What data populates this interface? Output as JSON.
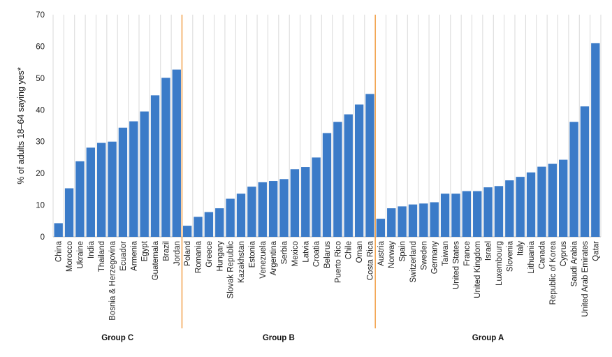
{
  "chart_data": {
    "type": "bar",
    "title": "",
    "ylabel": "% of adults 18–64 saying yes*",
    "xlabel": "",
    "ylim": [
      0,
      70
    ],
    "yticks": [
      0,
      10,
      20,
      30,
      40,
      50,
      60,
      70
    ],
    "grid": "vertical",
    "bar_color": "#3b7bc8",
    "separator_color": "#f2a14a",
    "categories": [
      "China",
      "Morocco",
      "Ukraine",
      "India",
      "Thailand",
      "Bosnia & Herzegovina",
      "Ecuador",
      "Armenia",
      "Egypt",
      "Guatemala",
      "Brazil",
      "Jordan",
      "Poland",
      "Romania",
      "Greece",
      "Hungary",
      "Slovak Republic",
      "Kazakhstan",
      "Estonia",
      "Venezuela",
      "Argentina",
      "Serbia",
      "Mexico",
      "Latvia",
      "Croatia",
      "Belarus",
      "Puerto Rico",
      "Chile",
      "Oman",
      "Costa Rica",
      "Austria",
      "Norway",
      "Spain",
      "Switzerland",
      "Sweden",
      "Germany",
      "Taiwan",
      "United States",
      "France",
      "United Kingdom",
      "Israel",
      "Luxembourg",
      "Slovenia",
      "Italy",
      "Lithuania",
      "Canada",
      "Republic of Korea",
      "Cyprus",
      "Saudi Arabia",
      "United Arab Emirates",
      "Qatar"
    ],
    "values": [
      4.3,
      15.3,
      23.8,
      28.1,
      29.6,
      30.0,
      34.4,
      36.4,
      39.5,
      44.6,
      50.1,
      52.7,
      3.5,
      6.3,
      7.8,
      9.0,
      12.0,
      13.6,
      15.8,
      17.2,
      17.6,
      18.2,
      21.3,
      22.0,
      25.0,
      32.7,
      36.2,
      38.6,
      41.7,
      45.0,
      5.7,
      9.0,
      9.6,
      10.2,
      10.5,
      10.9,
      13.6,
      13.6,
      14.4,
      14.4,
      15.6,
      16.0,
      17.8,
      18.9,
      20.3,
      22.1,
      23.0,
      24.3,
      36.2,
      41.1,
      61.0
    ],
    "groups": [
      {
        "name": "Group C",
        "start": 0,
        "end": 11
      },
      {
        "name": "Group B",
        "start": 12,
        "end": 29
      },
      {
        "name": "Group A",
        "start": 30,
        "end": 50
      }
    ]
  }
}
